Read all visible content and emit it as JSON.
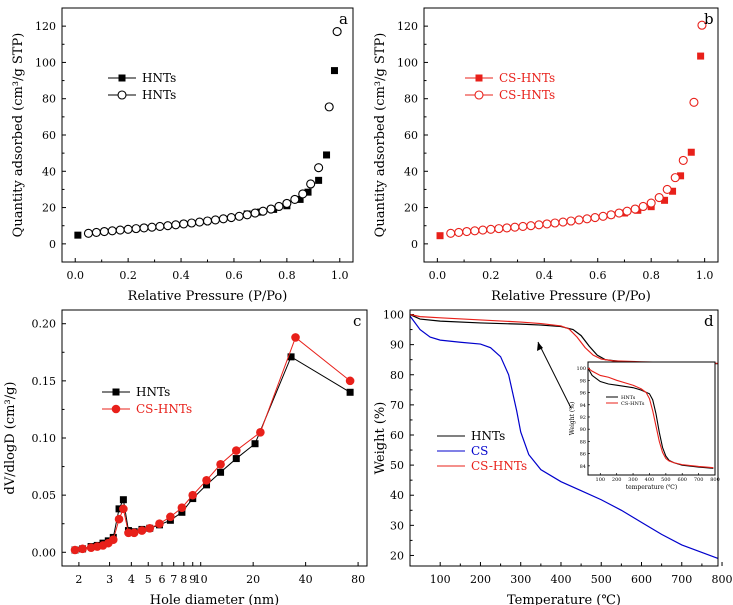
{
  "chart_data": [
    {
      "id": "a",
      "type": "scatter",
      "panel_label": "a",
      "xlabel": "Relative Pressure (P/Po)",
      "ylabel": "Quantity adsorbed (cm³/g STP)",
      "xlim": [
        -0.05,
        1.05
      ],
      "ylim": [
        -10,
        130
      ],
      "xticks": [
        0.0,
        0.2,
        0.4,
        0.6,
        0.8,
        1.0
      ],
      "xtick_labels": [
        "0.0",
        "0.2",
        "0.4",
        "0.6",
        "0.8",
        "1.0"
      ],
      "yticks": [
        0,
        20,
        40,
        60,
        80,
        100,
        120
      ],
      "ytick_labels": [
        "0",
        "20",
        "40",
        "60",
        "80",
        "100",
        "120"
      ],
      "series": [
        {
          "name": "HNTs",
          "marker": "square-filled",
          "color": "#000000",
          "x": [
            0.01,
            0.65,
            0.7,
            0.75,
            0.8,
            0.85,
            0.88,
            0.92,
            0.95,
            0.98
          ],
          "y": [
            4.8,
            16.5,
            17.5,
            19.0,
            21.0,
            24.5,
            28.5,
            35.0,
            49.0,
            95.5
          ]
        },
        {
          "name": "HNTs",
          "marker": "circle-open",
          "color": "#000000",
          "x": [
            0.05,
            0.08,
            0.11,
            0.14,
            0.17,
            0.2,
            0.23,
            0.26,
            0.29,
            0.32,
            0.35,
            0.38,
            0.41,
            0.44,
            0.47,
            0.5,
            0.53,
            0.56,
            0.59,
            0.62,
            0.65,
            0.68,
            0.71,
            0.74,
            0.77,
            0.8,
            0.83,
            0.86,
            0.89,
            0.92,
            0.96,
            0.99
          ],
          "y": [
            5.8,
            6.3,
            6.8,
            7.2,
            7.6,
            8.0,
            8.4,
            8.8,
            9.2,
            9.6,
            10.0,
            10.5,
            11.0,
            11.5,
            12.0,
            12.6,
            13.2,
            13.8,
            14.5,
            15.2,
            16.0,
            17.0,
            18.0,
            19.2,
            20.6,
            22.3,
            24.5,
            27.5,
            33.0,
            42.0,
            75.5,
            117.0
          ]
        }
      ]
    },
    {
      "id": "b",
      "type": "scatter",
      "panel_label": "b",
      "xlabel": "Relative Pressure (P/Po)",
      "ylabel": "Quantity adsorbed (cm³/g STP)",
      "xlim": [
        -0.05,
        1.05
      ],
      "ylim": [
        -10,
        130
      ],
      "xticks": [
        0.0,
        0.2,
        0.4,
        0.6,
        0.8,
        1.0
      ],
      "xtick_labels": [
        "0.0",
        "0.2",
        "0.4",
        "0.6",
        "0.8",
        "1.0"
      ],
      "yticks": [
        0,
        20,
        40,
        60,
        80,
        100,
        120
      ],
      "ytick_labels": [
        "0",
        "20",
        "40",
        "60",
        "80",
        "100",
        "120"
      ],
      "series": [
        {
          "name": "CS-HNTs",
          "marker": "square-filled",
          "color": "#e8201a",
          "x": [
            0.01,
            0.65,
            0.7,
            0.75,
            0.8,
            0.85,
            0.88,
            0.91,
            0.95,
            0.985
          ],
          "y": [
            4.5,
            16.0,
            17.0,
            18.5,
            20.5,
            24.0,
            29.0,
            37.5,
            50.5,
            103.5
          ]
        },
        {
          "name": "CS-HNTs",
          "marker": "circle-open",
          "color": "#e8201a",
          "x": [
            0.05,
            0.08,
            0.11,
            0.14,
            0.17,
            0.2,
            0.23,
            0.26,
            0.29,
            0.32,
            0.35,
            0.38,
            0.41,
            0.44,
            0.47,
            0.5,
            0.53,
            0.56,
            0.59,
            0.62,
            0.65,
            0.68,
            0.71,
            0.74,
            0.77,
            0.8,
            0.83,
            0.86,
            0.89,
            0.92,
            0.96,
            0.99
          ],
          "y": [
            5.8,
            6.3,
            6.8,
            7.2,
            7.6,
            8.0,
            8.4,
            8.8,
            9.2,
            9.6,
            10.0,
            10.5,
            11.0,
            11.5,
            12.0,
            12.6,
            13.2,
            13.8,
            14.5,
            15.2,
            16.0,
            17.0,
            18.0,
            19.2,
            20.6,
            22.5,
            25.5,
            30.0,
            36.5,
            46.0,
            78.0,
            120.5
          ]
        }
      ]
    },
    {
      "id": "c",
      "type": "line",
      "panel_label": "c",
      "xlabel": "Hole diameter (nm)",
      "ylabel": "dV/dlogD (cm³/g)",
      "xscale": "log",
      "xlim": [
        1.6,
        90
      ],
      "ylim": [
        -0.012,
        0.212
      ],
      "xticks": [
        2,
        3,
        4,
        5,
        6,
        7,
        8,
        9,
        10,
        20,
        40,
        80
      ],
      "xtick_labels": [
        "2",
        "3",
        "4",
        "5",
        "6",
        "7",
        "8",
        "9",
        "10",
        "20",
        "40",
        "80"
      ],
      "yticks": [
        0.0,
        0.05,
        0.1,
        0.15,
        0.2
      ],
      "ytick_labels": [
        "0.00",
        "0.05",
        "0.10",
        "0.15",
        "0.20"
      ],
      "series": [
        {
          "name": "HNTs",
          "marker": "square-filled",
          "color": "#000000",
          "x": [
            1.9,
            2.1,
            2.35,
            2.55,
            2.75,
            2.95,
            3.15,
            3.4,
            3.6,
            3.85,
            4.15,
            4.6,
            5.1,
            5.8,
            6.7,
            7.8,
            9.0,
            10.8,
            13.0,
            16.0,
            20.5,
            33.0,
            72.0
          ],
          "y": [
            0.002,
            0.003,
            0.005,
            0.006,
            0.008,
            0.01,
            0.013,
            0.038,
            0.046,
            0.019,
            0.018,
            0.02,
            0.021,
            0.024,
            0.028,
            0.035,
            0.047,
            0.059,
            0.07,
            0.082,
            0.095,
            0.171,
            0.14
          ]
        },
        {
          "name": "CS-HNTs",
          "marker": "circle-filled",
          "color": "#e8201a",
          "x": [
            1.9,
            2.1,
            2.35,
            2.55,
            2.75,
            2.95,
            3.15,
            3.4,
            3.6,
            3.85,
            4.15,
            4.6,
            5.1,
            5.8,
            6.7,
            7.8,
            9.0,
            10.8,
            13.0,
            16.0,
            22.0,
            35.0,
            72.0
          ],
          "y": [
            0.002,
            0.003,
            0.004,
            0.005,
            0.006,
            0.008,
            0.011,
            0.029,
            0.038,
            0.017,
            0.017,
            0.019,
            0.021,
            0.025,
            0.031,
            0.039,
            0.05,
            0.063,
            0.077,
            0.089,
            0.105,
            0.188,
            0.15
          ]
        }
      ]
    },
    {
      "id": "d",
      "type": "line",
      "panel_label": "d",
      "xlabel": "Temperature (℃)",
      "ylabel": "Weight (%)",
      "xlim": [
        25,
        790
      ],
      "ylim": [
        16.5,
        101.5
      ],
      "xticks": [
        100,
        200,
        300,
        400,
        500,
        600,
        700,
        800
      ],
      "xtick_labels": [
        "100",
        "200",
        "300",
        "400",
        "500",
        "600",
        "700",
        "800"
      ],
      "yticks": [
        20,
        30,
        40,
        50,
        60,
        70,
        80,
        90,
        100
      ],
      "ytick_labels": [
        "20",
        "30",
        "40",
        "50",
        "60",
        "70",
        "80",
        "90",
        "100"
      ],
      "series": [
        {
          "name": "HNTs",
          "color": "#000000",
          "x": [
            25,
            50,
            100,
            200,
            300,
            350,
            400,
            430,
            450,
            470,
            490,
            510,
            550,
            600,
            700,
            790
          ],
          "y": [
            100,
            98.5,
            97.8,
            97.2,
            96.8,
            96.5,
            96.0,
            95.0,
            93.0,
            89.5,
            86.5,
            85.0,
            84.4,
            84.1,
            83.8,
            83.7
          ]
        },
        {
          "name": "CS",
          "color": "#0000cc",
          "x": [
            25,
            50,
            75,
            100,
            150,
            200,
            225,
            250,
            270,
            290,
            300,
            320,
            350,
            400,
            450,
            500,
            550,
            600,
            650,
            700,
            750,
            790
          ],
          "y": [
            99.5,
            95.0,
            92.5,
            91.5,
            90.8,
            90.2,
            89.0,
            86.0,
            80.0,
            68.0,
            61.0,
            53.5,
            48.5,
            44.5,
            41.5,
            38.5,
            35.0,
            31.0,
            27.0,
            23.5,
            21.0,
            19.0
          ]
        },
        {
          "name": "CS-HNTs",
          "color": "#e8201a",
          "x": [
            25,
            50,
            100,
            200,
            300,
            350,
            400,
            420,
            440,
            460,
            480,
            500,
            530,
            600,
            700,
            790
          ],
          "y": [
            100,
            99.3,
            98.9,
            98.2,
            97.5,
            97.0,
            96.2,
            95.2,
            92.5,
            89.0,
            86.5,
            85.2,
            84.6,
            84.3,
            84.0,
            83.8
          ]
        }
      ],
      "annotation": "arrow pointing from the main-curve step near 420 °C to the zoomed inset",
      "inset": {
        "xlabel": "temperature (℃)",
        "ylabel": "Weight (%)",
        "xlim": [
          25,
          800
        ],
        "ylim": [
          82.5,
          101
        ],
        "xticks": [
          100,
          200,
          300,
          400,
          500,
          600,
          700,
          800
        ],
        "xtick_labels": [
          "100",
          "200",
          "300",
          "400",
          "500",
          "600",
          "700",
          "800"
        ],
        "yticks": [
          84,
          86,
          88,
          90,
          92,
          94,
          96,
          98,
          100
        ],
        "ytick_labels": [
          "84",
          "86",
          "88",
          "90",
          "92",
          "94",
          "96",
          "98",
          "100"
        ],
        "series": [
          {
            "name": "HNTs",
            "color": "#000000",
            "x": [
              25,
              50,
              100,
              150,
              200,
              300,
              350,
              400,
              420,
              440,
              460,
              480,
              500,
              520,
              550,
              600,
              700,
              790
            ],
            "y": [
              100,
              98.8,
              97.8,
              97.4,
              97.2,
              96.8,
              96.4,
              95.8,
              94.8,
              92.5,
              89.5,
              87.0,
              85.6,
              84.9,
              84.5,
              84.1,
              83.8,
              83.6
            ]
          },
          {
            "name": "CS-HNTs",
            "color": "#e8201a",
            "x": [
              25,
              50,
              100,
              150,
              200,
              300,
              350,
              380,
              400,
              420,
              440,
              460,
              480,
              500,
              520,
              550,
              600,
              700,
              790
            ],
            "y": [
              100,
              99.5,
              98.8,
              98.5,
              98.0,
              97.2,
              96.6,
              96.0,
              95.0,
              93.0,
              90.5,
              88.0,
              86.2,
              85.2,
              84.8,
              84.5,
              84.2,
              83.9,
              83.7
            ]
          }
        ]
      }
    }
  ]
}
